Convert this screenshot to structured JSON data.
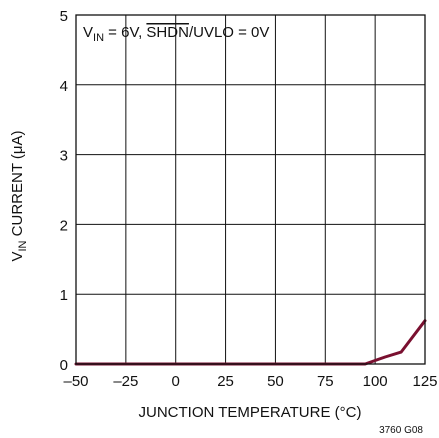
{
  "chart_data": {
    "type": "line",
    "xlabel": "JUNCTION TEMPERATURE (°C)",
    "ylabel_main": "V",
    "ylabel_sub": "IN",
    "ylabel_rest": " CURRENT (μA)",
    "xlim": [
      -50,
      125
    ],
    "ylim": [
      0,
      5
    ],
    "x_ticks": [
      "–50",
      "–25",
      "0",
      "25",
      "50",
      "75",
      "100",
      "125"
    ],
    "x_tick_values": [
      -50,
      -25,
      0,
      25,
      50,
      75,
      100,
      125
    ],
    "y_ticks": [
      "0",
      "1",
      "2",
      "3",
      "4",
      "5"
    ],
    "y_tick_values": [
      0,
      1,
      2,
      3,
      4,
      5
    ],
    "grid": true,
    "annotation": {
      "v": "V",
      "sub": "IN",
      "mid": " = 6V, ",
      "overline": "SHDN",
      "rest": "/UVLO = 0V"
    },
    "figure_code": "3760 G08",
    "series": [
      {
        "color": "#7a1030",
        "x": [
          -50,
          -25,
          0,
          25,
          50,
          75,
          95,
          105,
          113,
          125
        ],
        "y": [
          0.0,
          0.0,
          0.0,
          0.0,
          0.0,
          0.0,
          0.0,
          0.1,
          0.17,
          0.62
        ]
      }
    ]
  }
}
